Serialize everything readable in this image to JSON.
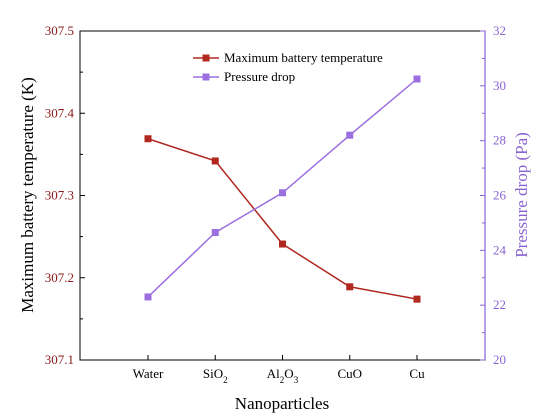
{
  "chart_data": {
    "type": "line",
    "xlabel": "Nanoparticles",
    "categories": [
      "Water",
      "SiO2",
      "Al2O3",
      "CuO",
      "Cu"
    ],
    "category_display": [
      {
        "base": "Water",
        "sub": ""
      },
      {
        "base": "SiO",
        "sub": "2"
      },
      {
        "base": "Al",
        "sub": "2",
        "tail": "O",
        "sub2": "3"
      },
      {
        "base": "CuO",
        "sub": ""
      },
      {
        "base": "Cu",
        "sub": ""
      }
    ],
    "left_axis": {
      "label": "Maximum battery temperature (K)",
      "ylim": [
        307.1,
        307.5
      ],
      "ticks": [
        "307.1",
        "307.2",
        "307.3",
        "307.4",
        "307.5"
      ],
      "color": "#8b1a1a"
    },
    "right_axis": {
      "label": "Pressure drop (Pa)",
      "ylim": [
        20,
        32
      ],
      "ticks": [
        "20",
        "22",
        "24",
        "26",
        "28",
        "30",
        "32"
      ],
      "color": "#8a63d2"
    },
    "series": [
      {
        "name": "Maximum battery temperature",
        "axis": "left",
        "color": "#b0281f",
        "values": [
          307.369,
          307.342,
          307.241,
          307.189,
          307.174
        ]
      },
      {
        "name": "Pressure drop",
        "axis": "right",
        "color": "#9b6fe0",
        "values": [
          22.3,
          24.65,
          26.1,
          28.2,
          30.25
        ]
      }
    ],
    "legend": "top-center",
    "grid": false
  }
}
